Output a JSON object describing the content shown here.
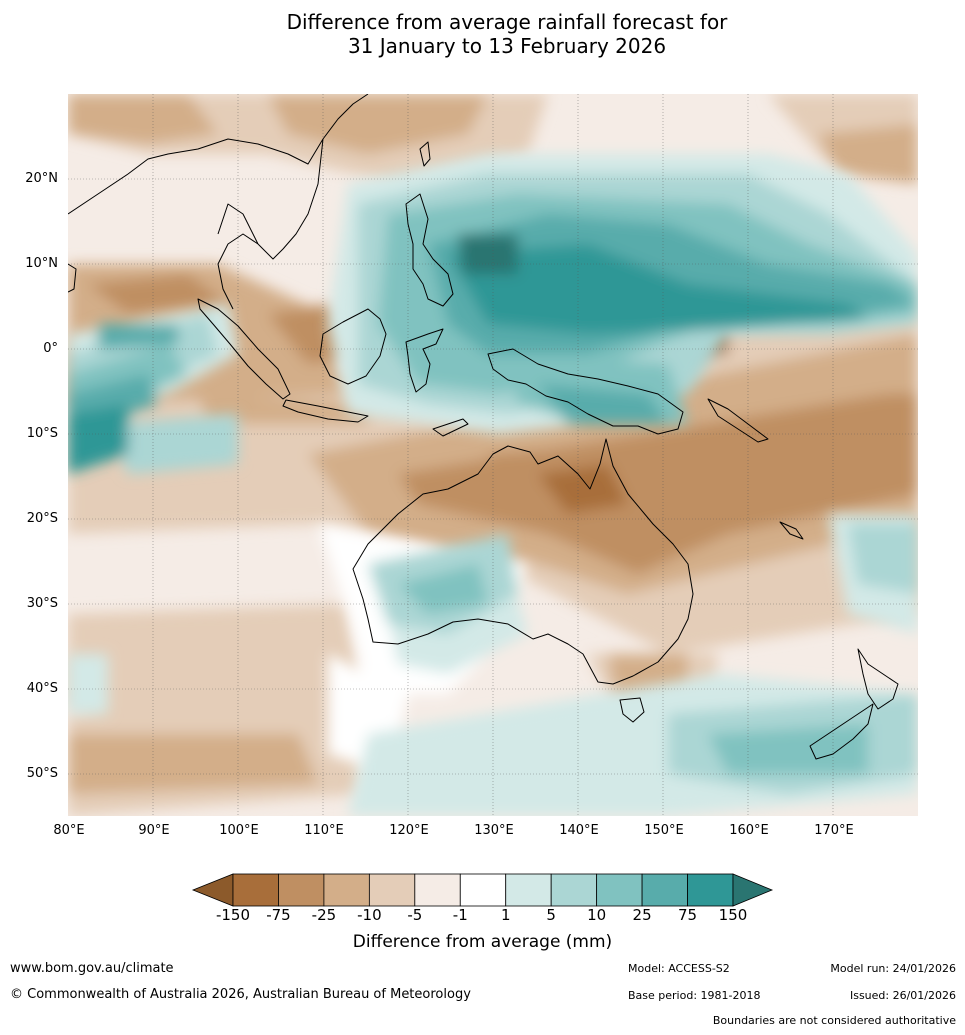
{
  "title": {
    "line1": "Difference from average rainfall forecast for",
    "line2": "31 January to 13 February 2026"
  },
  "map": {
    "lon_range": [
      80,
      180
    ],
    "lat_range": [
      -55,
      30
    ],
    "lat_labels": [
      "20°N",
      "10°N",
      "0°",
      "10°S",
      "20°S",
      "30°S",
      "40°S",
      "50°S"
    ],
    "lon_labels": [
      "80°E",
      "90°E",
      "100°E",
      "110°E",
      "120°E",
      "130°E",
      "140°E",
      "150°E",
      "160°E",
      "170°E"
    ]
  },
  "colorbar": {
    "ticks": [
      "-150",
      "-75",
      "-25",
      "-10",
      "-5",
      "-1",
      "1",
      "5",
      "10",
      "25",
      "75",
      "150"
    ],
    "colors": [
      "#a86e3a",
      "#bf8f62",
      "#d3ae89",
      "#e4cdb8",
      "#f5ece6",
      "#ffffff",
      "#d3e9e7",
      "#abd6d4",
      "#80c2c0",
      "#58acab",
      "#2f9796"
    ],
    "extend_low_color": "#8c5a2b",
    "extend_high_color": "#2a7571",
    "label": "Difference from average (mm)"
  },
  "footer": {
    "website": "www.bom.gov.au/climate",
    "copyright": "© Commonwealth of Australia 2026, Australian Bureau of Meteorology",
    "model": "Model: ACCESS-S2",
    "base_period": "Base period: 1981-2018",
    "model_run": "Model run: 24/01/2026",
    "issued": "Issued: 26/01/2026",
    "disclaimer": "Boundaries are not considered authoritative"
  }
}
